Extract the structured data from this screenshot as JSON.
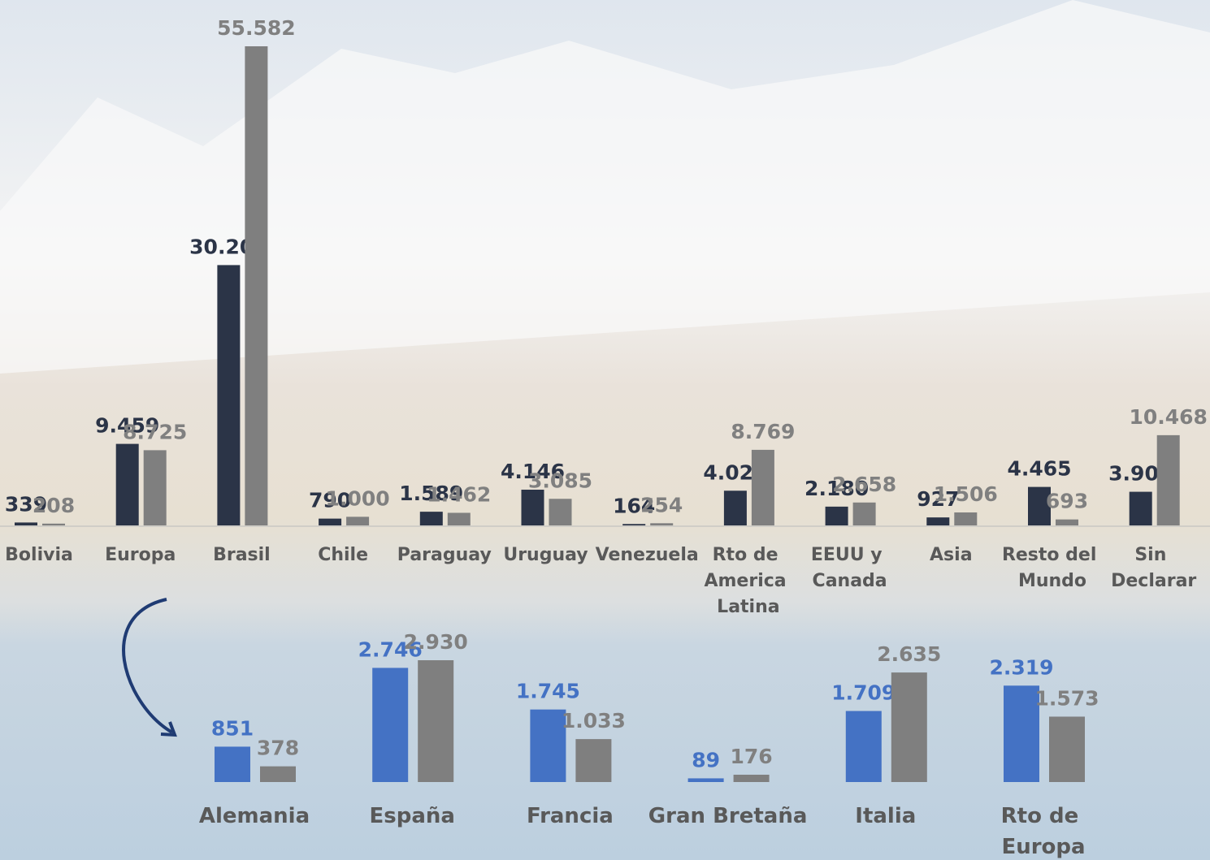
{
  "chart_data": [
    {
      "type": "bar",
      "categories": [
        "Bolivia",
        "Europa",
        "Brasil",
        "Chile",
        "Paraguay",
        "Uruguay",
        "Venezuela",
        "Rto de America Latina",
        "EEUU y Canada",
        "Asia",
        "Resto del Mundo",
        "Sin Declarar"
      ],
      "series": [
        {
          "color": "#2b3447",
          "values": [
            339,
            9459,
            30200,
            790,
            1589,
            4146,
            164,
            4026,
            2180,
            927,
            4465,
            3903
          ],
          "value_labels": [
            "339",
            "9.459",
            "30.200",
            "790",
            "1.589",
            "4.146",
            "164",
            "4.026",
            "2.180",
            "927",
            "4.465",
            "3.903"
          ]
        },
        {
          "color": "#7f7f7f",
          "values": [
            208,
            8725,
            55582,
            1000,
            1462,
            3085,
            254,
            8769,
            2658,
            1506,
            693,
            10468
          ],
          "value_labels": [
            "208",
            "8.725",
            "55.582",
            "1.000",
            "1.462",
            "3.085",
            "254",
            "8.769",
            "2.658",
            "1.506",
            "693",
            "10.468"
          ]
        }
      ]
    },
    {
      "type": "bar",
      "categories": [
        "Alemania",
        "España",
        "Francia",
        "Gran Bretaña",
        "Italia",
        "Rto de Europa"
      ],
      "series": [
        {
          "color": "#4472c4",
          "values": [
            851,
            2746,
            1745,
            89,
            1709,
            2319
          ],
          "value_labels": [
            "851",
            "2.746",
            "1.745",
            "89",
            "1.709",
            "2.319"
          ]
        },
        {
          "color": "#7f7f7f",
          "values": [
            378,
            2930,
            1033,
            176,
            2635,
            1573
          ],
          "value_labels": [
            "378",
            "2.930",
            "1.033",
            "176",
            "2.635",
            "1.573"
          ]
        }
      ]
    }
  ]
}
